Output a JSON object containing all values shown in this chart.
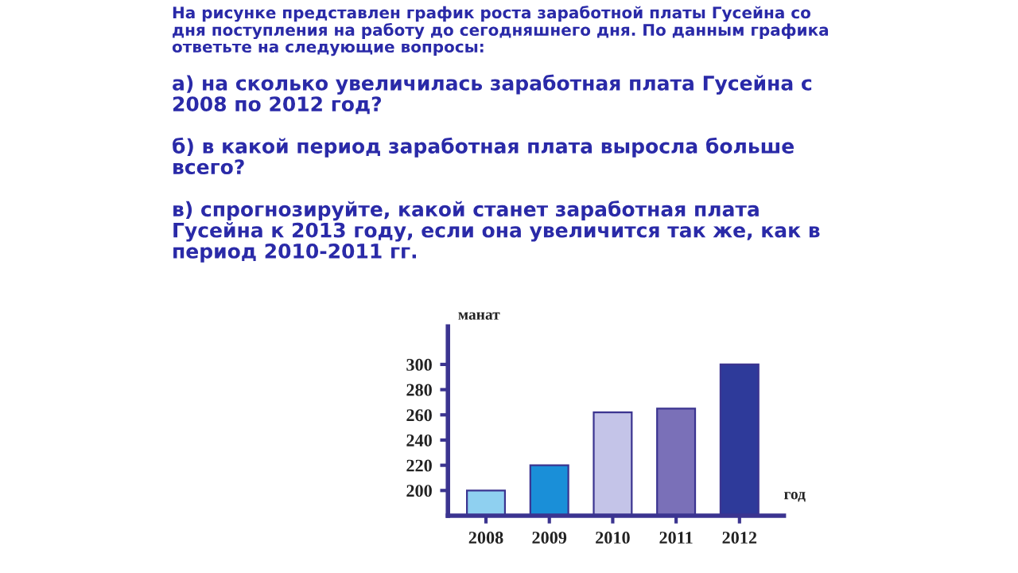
{
  "chart_data": {
    "type": "bar",
    "title": "На рисунке представлен график роста заработной платы Гусейна со дня поступления на работу до сегодняшнего дня. По данным графика ответьте на следующие вопросы:",
    "annotations": [
      "а) на сколько увеличилась заработная плата Гусейна с 2008 по 2012 год?",
      "б) в какой период заработная плата выросла больше всего?",
      "в) спрогнозируйте, какой станет заработная плата Гусейна к 2013 году, если она увеличится так же, как в период 2010-2011 гг."
    ],
    "xlabel": "год",
    "ylabel": "манат",
    "categories": [
      "2008",
      "2009",
      "2010",
      "2011",
      "2012"
    ],
    "values": [
      200,
      220,
      262,
      265,
      300
    ],
    "colors": [
      "#8fd0f0",
      "#1a8fd8",
      "#c4c4e8",
      "#7a70b8",
      "#2e3a9a"
    ],
    "ylim": [
      180,
      330
    ],
    "yticks": [
      200,
      220,
      240,
      260,
      280,
      300
    ],
    "grid": false,
    "legend": false
  }
}
